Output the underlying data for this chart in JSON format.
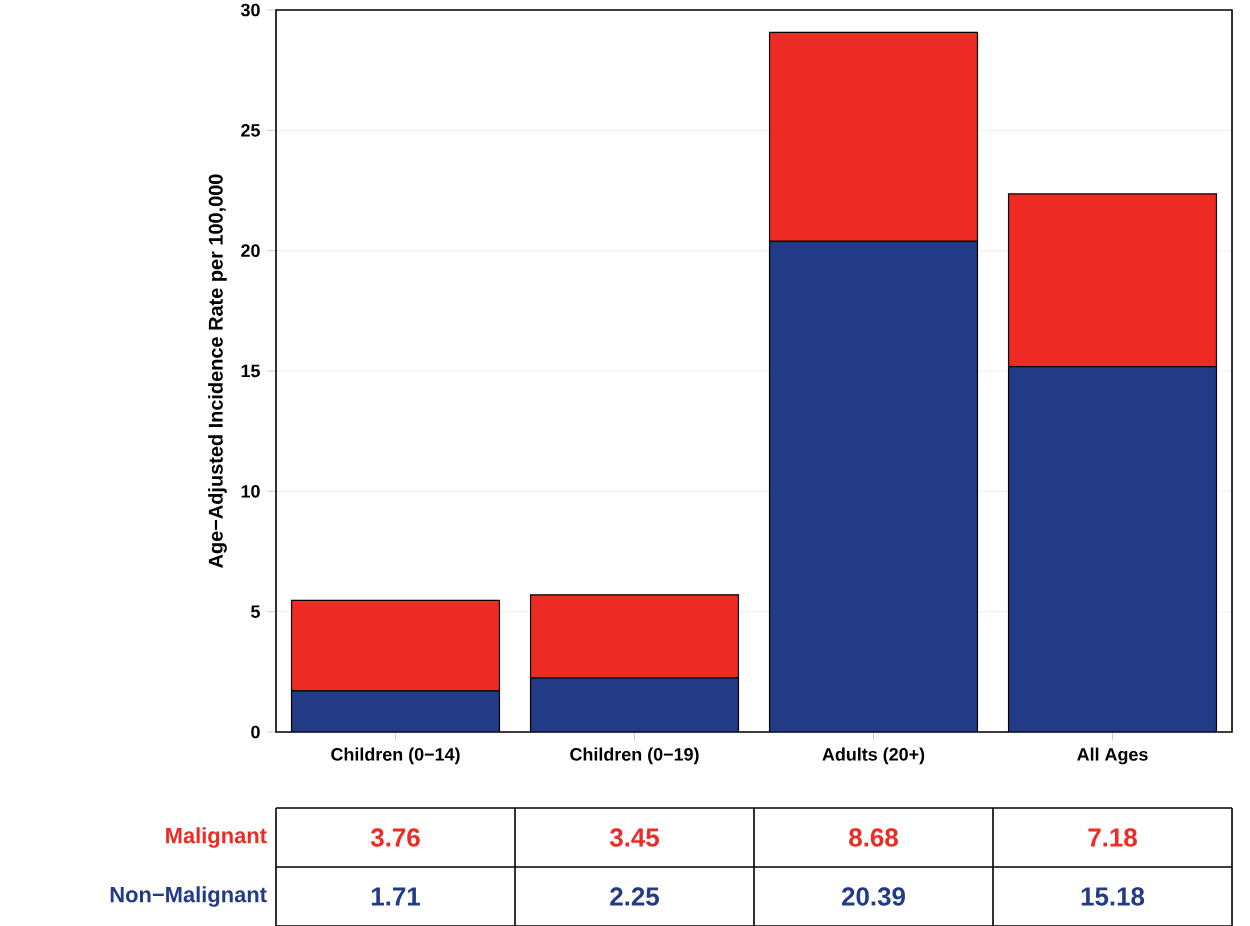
{
  "chart_data": {
    "type": "bar",
    "stacked": true,
    "ylabel": "Age−Adjusted Incidence Rate per 100,000",
    "categories": [
      "Children (0−14)",
      "Children (0−19)",
      "Adults (20+)",
      "All Ages"
    ],
    "series": [
      {
        "name": "Non−Malignant",
        "color": "#233a86",
        "values": [
          1.71,
          2.25,
          20.39,
          15.18
        ]
      },
      {
        "name": "Malignant",
        "color": "#ee2a24",
        "values": [
          3.76,
          3.45,
          8.68,
          7.18
        ]
      }
    ],
    "ylim": [
      0,
      30
    ],
    "yticks": [
      0,
      5,
      10,
      15,
      20,
      25,
      30
    ],
    "grid": "y",
    "data_labels": true
  }
}
